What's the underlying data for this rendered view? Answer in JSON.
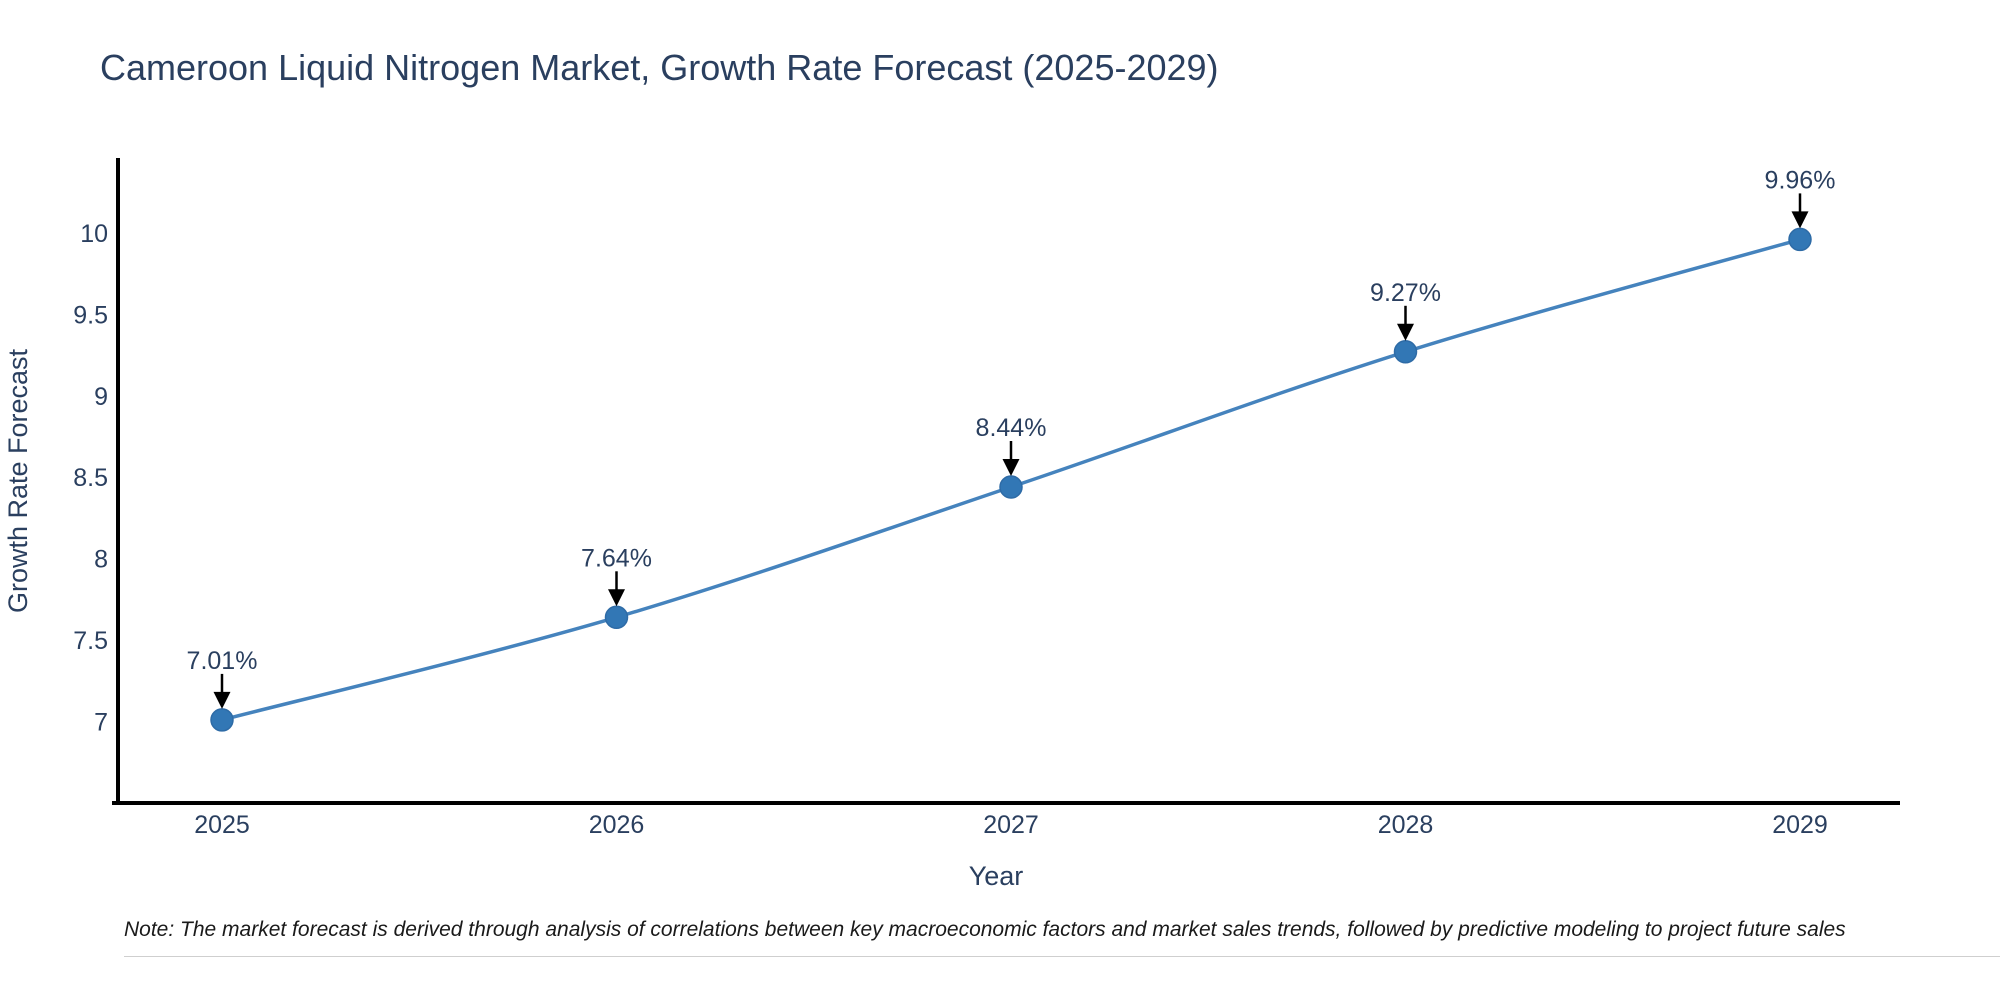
{
  "page": {
    "title": "Cameroon Liquid Nitrogen Market, Growth Rate Forecast (2025-2029)",
    "note": "Note: The market forecast is derived through analysis of correlations between key macroeconomic factors and market sales trends, followed by predictive modeling to project future sales"
  },
  "chart_data": {
    "type": "line",
    "title": "Cameroon Liquid Nitrogen Market, Growth Rate Forecast (2025-2029)",
    "categories": [
      "2025",
      "2026",
      "2027",
      "2028",
      "2029"
    ],
    "series": [
      {
        "name": "Growth Rate Forecast",
        "values": [
          7.01,
          7.64,
          8.44,
          9.27,
          9.96
        ]
      }
    ],
    "point_labels": [
      "7.01%",
      "7.64%",
      "8.44%",
      "9.27%",
      "9.96%"
    ],
    "xlabel": "Year",
    "ylabel": "Growth Rate Forecast",
    "ytick_labels": [
      "7",
      "7.5",
      "8",
      "8.5",
      "9",
      "9.5",
      "10"
    ],
    "ytick_values": [
      7,
      7.5,
      8,
      8.5,
      9,
      9.5,
      10
    ],
    "ylim": [
      6.5,
      10.46
    ],
    "grid": false,
    "legend": false,
    "annotations_have_arrows": true,
    "colors": {
      "line": "#4583bd",
      "marker": "#3277b5",
      "marker_edge": "#2e6ba6",
      "axis": "#000000",
      "text": "#2a3f5f",
      "arrow": "#000000",
      "note_text": "#1a1a1a",
      "background": "#ffffff"
    }
  }
}
